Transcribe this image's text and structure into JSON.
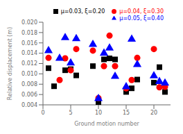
{
  "chart_data": {
    "type": "scatter",
    "xlabel": "Ground motion number",
    "ylabel": "Relative displacement (m)",
    "xlim": [
      0,
      23
    ],
    "ylim": [
      0.004,
      0.02
    ],
    "xticks": [
      0,
      5,
      10,
      15,
      20
    ],
    "yticks": [
      0.004,
      0.006,
      0.008,
      {
        "value": 0.01,
        "label": "0.010"
      },
      0.012,
      0.014,
      0.016,
      0.018,
      {
        "value": 0.02,
        "label": "0.020"
      }
    ],
    "legend": "upper right",
    "grid": false,
    "series": [
      {
        "name": "μ=0.03, ξ=0.20",
        "color": "black",
        "marker": "square",
        "x": [
          1,
          2,
          4,
          5,
          6,
          9,
          10,
          11,
          12,
          13,
          15,
          16,
          17,
          20,
          21,
          22
        ],
        "values": [
          0.0111,
          0.0076,
          0.0107,
          0.0109,
          0.0097,
          0.0115,
          0.0044,
          0.0128,
          0.013,
          0.0128,
          0.0065,
          0.0072,
          0.0089,
          0.0083,
          0.0113,
          0.0065
        ]
      },
      {
        "name": "μ=0.04, ξ=0.30",
        "color": "red",
        "marker": "circle",
        "x": [
          1,
          3,
          4,
          5,
          6,
          9,
          10,
          11,
          12,
          13,
          15,
          16,
          17,
          20,
          21,
          22
        ],
        "values": [
          0.0131,
          0.0088,
          0.013,
          0.0107,
          0.0148,
          0.0145,
          0.0053,
          0.0115,
          0.0174,
          0.0115,
          0.0072,
          0.0088,
          0.0131,
          0.0148,
          0.0074,
          0.0075
        ]
      },
      {
        "name": "μ=0.05, ξ=0.40",
        "color": "blue",
        "marker": "triangle",
        "x": [
          1,
          3,
          4,
          5,
          6,
          9,
          10,
          11,
          12,
          13,
          15,
          16,
          17,
          20,
          21,
          22
        ],
        "values": [
          0.0145,
          0.013,
          0.017,
          0.0121,
          0.0168,
          0.0157,
          0.0052,
          0.014,
          0.015,
          0.0095,
          0.0075,
          0.0167,
          0.0118,
          0.0096,
          0.0085,
          0.0082
        ]
      }
    ]
  }
}
